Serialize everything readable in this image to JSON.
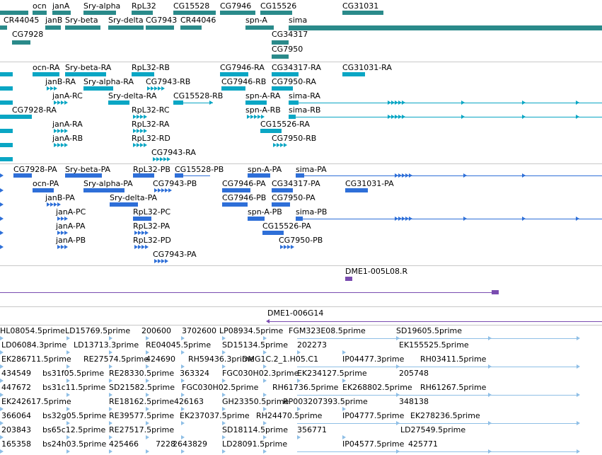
{
  "colors": {
    "gene": "#2a8a8a",
    "transcript_rna": "#0aa6c4",
    "transcript_pa": "#2e6fd8",
    "clone": "#7a4cb0",
    "est": "#8fbfe6",
    "separator": "#c8c8c8"
  },
  "tracks": {
    "genes": {
      "labels": [
        "ocn",
        "janA",
        "Sry-alpha",
        "RpL32",
        "CG15528",
        "CG7946",
        "CG15526",
        "CG31031",
        "CR44045",
        "janB",
        "Sry-beta",
        "Sry-delta",
        "CG7943",
        "CR44046",
        "spn-A",
        "sima",
        "CG34317",
        "CG7928",
        "CG7950"
      ]
    },
    "transcripts_ra": {
      "labels": [
        "ocn-RA",
        "Sry-beta-RA",
        "RpL32-RB",
        "CG7946-RA",
        "CG34317-RA",
        "CG31031-RA",
        "janB-RA",
        "Sry-alpha-RA",
        "CG7943-RB",
        "CG7946-RB",
        "CG7950-RA",
        "janA-RC",
        "Sry-delta-RA",
        "CG15528-RB",
        "spn-A-RA",
        "sima-RA",
        "CG7928-RA",
        "RpL32-RC",
        "spn-A-RB",
        "sima-RB",
        "janA-RA",
        "RpL32-RA",
        "CG15526-RA",
        "janA-RB",
        "RpL32-RD",
        "CG7950-RB",
        "CG7943-RA"
      ]
    },
    "transcripts_pa": {
      "labels": [
        "CG7928-PA",
        "Sry-beta-PA",
        "RpL32-PB",
        "CG15528-PB",
        "spn-A-PA",
        "sima-PA",
        "ocn-PA",
        "Sry-alpha-PA",
        "CG7943-PB",
        "CG7946-PA",
        "CG34317-PA",
        "CG31031-PA",
        "janB-PA",
        "Sry-delta-PA",
        "CG7946-PB",
        "CG7950-PA",
        "janA-PC",
        "RpL32-PC",
        "spn-A-PB",
        "sima-PB",
        "janA-PA",
        "RpL32-PA",
        "CG15526-PA",
        "janA-PB",
        "RpL32-PD",
        "CG7950-PB",
        "CG7943-PA"
      ]
    },
    "clones": {
      "labels": [
        "DME1-005L08.R",
        "DME1-006G14"
      ]
    },
    "ests": {
      "labels": [
        "HL08054.5prime",
        "LD15769.5prime",
        "200600",
        "3702600",
        "LP08934.5prime",
        "FGM323E08.5prime",
        "SD19605.5prime",
        "LD06084.3prime",
        "LD13713.3prime",
        "RE04045.5prime",
        "SD15134.5prime",
        "202273",
        "EK155525.5prime",
        "EK286711.5prime",
        "RE27574.5prime",
        "424690",
        "RH59436.3prime",
        "DMG1C.2_1.H05.C1",
        "IP04477.3prime",
        "RH03411.5prime",
        "434549",
        "bs31f05.5prime",
        "RE28330.5prime",
        "363324",
        "FGC030H02.3prime",
        "EK234127.5prime",
        "205748",
        "447672",
        "bs31c11.5prime",
        "SD21582.5prime",
        "FGC030H02.5prime",
        "RH61736.5prime",
        "EK268802.5prime",
        "RH61267.5prime",
        "EK242617.5prime",
        "RE18162.5prime",
        "426163",
        "GH23350.5prime",
        "RP003207393.5prime",
        "348138",
        "366064",
        "bs32g05.5prime",
        "RE39577.5prime",
        "EK237037.5prime",
        "RH24470.5prime",
        "IP04777.5prime",
        "EK278236.5prime",
        "203843",
        "bs65c12.5prime",
        "RE27517.5prime",
        "SD18114.5prime",
        "356771",
        "LD27549.5prime",
        "165358",
        "bs24h03.5prime",
        "425466",
        "7228",
        "2643829",
        "LD28091.5prime",
        "IP04577.5prime",
        "425771"
      ]
    }
  }
}
